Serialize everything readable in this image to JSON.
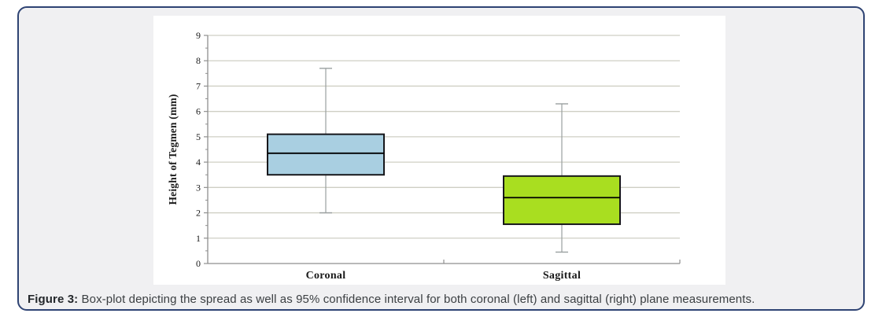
{
  "figure": {
    "caption_label": "Figure 3:",
    "caption_text": "Box-plot depicting the spread as well as 95% confidence interval for both coronal (left) and sagittal (right) plane measurements.",
    "border_color": "#2e4373",
    "background_color": "#f0f0f2"
  },
  "chart_data": {
    "type": "boxplot",
    "title": "",
    "xlabel": "",
    "ylabel": "Height of Tegmen (mm)",
    "ylim": [
      0,
      9
    ],
    "ytick_step": 1,
    "minor_tick_step": 0.5,
    "grid": true,
    "legend": "none",
    "categories": [
      "Coronal",
      "Sagittal"
    ],
    "series": [
      {
        "name": "Coronal",
        "whisker_low": 2.0,
        "q1": 3.5,
        "median": 4.35,
        "q3": 5.1,
        "whisker_high": 7.7,
        "fill": "#a9cfe1"
      },
      {
        "name": "Sagittal",
        "whisker_low": 0.45,
        "q1": 1.55,
        "median": 2.6,
        "q3": 3.45,
        "whisker_high": 6.3,
        "fill": "#a9de20"
      }
    ],
    "colors": {
      "gridline": "#cfcfc4",
      "axis": "#8f8f8f",
      "whisker": "#9aa0a0",
      "box_border": "#17171b",
      "median": "#000000"
    }
  }
}
